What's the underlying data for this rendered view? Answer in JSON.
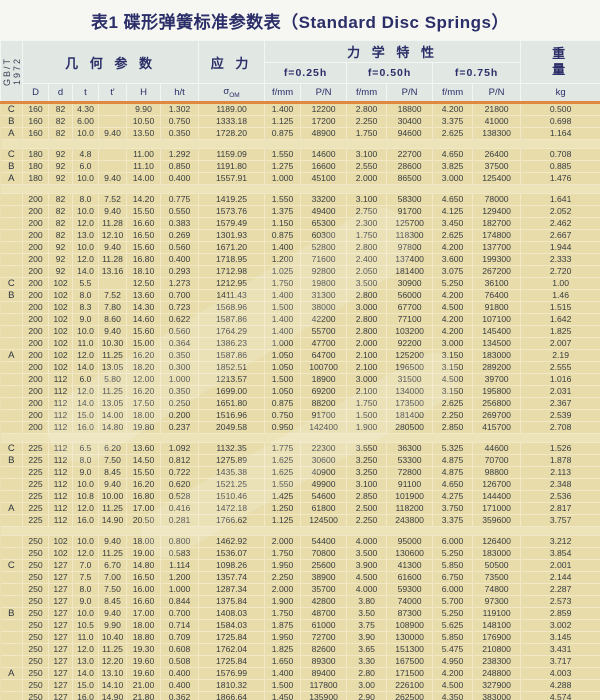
{
  "title": "表1 碟形弹簧标准参数表（Standard Disc Springs）",
  "standard": "GB/T 1972",
  "header": {
    "geometry": "几 何 参 数",
    "stress": "应 力",
    "mechanical": "力 学 特 性",
    "weight_line1": "重",
    "weight_line2": "量",
    "deflections": [
      "f=0.25h",
      "f=0.50h",
      "f=0.75h"
    ],
    "geom_cols": [
      "D",
      "d",
      "t",
      "t′",
      "H",
      "h/t"
    ],
    "sigma": "σ",
    "sigma_sub": "OM",
    "f_label": "f/mm",
    "p_label": "P/N",
    "kg_label": "kg"
  },
  "colors": {
    "body_bg": "#e9dfb2",
    "header_bg": "#e1e7e3",
    "accent_orange": "#e0883e",
    "title_text": "#2b2e68"
  },
  "rows": [
    [
      "C",
      "160",
      "82",
      "4.30",
      "",
      "9.90",
      "1.302",
      "1189.00",
      "1.400",
      "12200",
      "2.800",
      "18800",
      "4.200",
      "21800",
      "0.500"
    ],
    [
      "B",
      "160",
      "82",
      "6.00",
      "",
      "10.50",
      "0.750",
      "1333.18",
      "1.125",
      "17200",
      "2.250",
      "30400",
      "3.375",
      "41000",
      "0.698"
    ],
    [
      "A",
      "160",
      "82",
      "10.0",
      "9.40",
      "13.50",
      "0.350",
      "1728.20",
      "0.875",
      "48900",
      "1.750",
      "94600",
      "2.625",
      "138300",
      "1.164"
    ],
    "gap",
    [
      "C",
      "180",
      "92",
      "4.8",
      "",
      "11.00",
      "1.292",
      "1159.09",
      "1.550",
      "14600",
      "3.100",
      "22700",
      "4.650",
      "26400",
      "0.708"
    ],
    [
      "B",
      "180",
      "92",
      "6.0",
      "",
      "11.10",
      "0.850",
      "1191.80",
      "1.275",
      "16600",
      "2.550",
      "28600",
      "3.825",
      "37500",
      "0.885"
    ],
    [
      "A",
      "180",
      "92",
      "10.0",
      "9.40",
      "14.00",
      "0.400",
      "1557.91",
      "1.000",
      "45100",
      "2.000",
      "86500",
      "3.000",
      "125400",
      "1.476"
    ],
    "gap",
    [
      "",
      "200",
      "82",
      "8.0",
      "7.52",
      "14.20",
      "0.775",
      "1419.25",
      "1.550",
      "33200",
      "3.100",
      "58300",
      "4.650",
      "78000",
      "1.641"
    ],
    [
      "",
      "200",
      "82",
      "10.0",
      "9.40",
      "15.50",
      "0.550",
      "1573.76",
      "1.375",
      "49400",
      "2.750",
      "91700",
      "4.125",
      "129400",
      "2.052"
    ],
    [
      "",
      "200",
      "82",
      "12.0",
      "11.28",
      "16.60",
      "0.383",
      "1579.49",
      "1.150",
      "65300",
      "2.300",
      "125700",
      "3.450",
      "182700",
      "2.462"
    ],
    [
      "",
      "200",
      "82",
      "13.0",
      "12.10",
      "16.50",
      "0.269",
      "1301.93",
      "0.875",
      "60300",
      "1.750",
      "118300",
      "2.625",
      "174800",
      "2.667"
    ],
    [
      "",
      "200",
      "92",
      "10.0",
      "9.40",
      "15.60",
      "0.560",
      "1671.20",
      "1.400",
      "52800",
      "2.800",
      "97800",
      "4.200",
      "137700",
      "1.944"
    ],
    [
      "",
      "200",
      "92",
      "12.0",
      "11.28",
      "16.80",
      "0.400",
      "1718.95",
      "1.200",
      "71600",
      "2.400",
      "137400",
      "3.600",
      "199300",
      "2.333"
    ],
    [
      "",
      "200",
      "92",
      "14.0",
      "13.16",
      "18.10",
      "0.293",
      "1712.98",
      "1.025",
      "92800",
      "2.050",
      "181400",
      "3.075",
      "267200",
      "2.720"
    ],
    [
      "C",
      "200",
      "102",
      "5.5",
      "",
      "12.50",
      "1.273",
      "1212.95",
      "1.750",
      "19800",
      "3.500",
      "30900",
      "5.250",
      "36100",
      "1.00"
    ],
    [
      "B",
      "200",
      "102",
      "8.0",
      "7.52",
      "13.60",
      "0.700",
      "1411.43",
      "1.400",
      "31300",
      "2.800",
      "56000",
      "4.200",
      "76400",
      "1.46"
    ],
    [
      "",
      "200",
      "102",
      "8.3",
      "7.80",
      "14.30",
      "0.723",
      "1568.96",
      "1.500",
      "38000",
      "3.000",
      "67700",
      "4.500",
      "91800",
      "1.515"
    ],
    [
      "",
      "200",
      "102",
      "9.0",
      "8.60",
      "14.60",
      "0.622",
      "1587.86",
      "1.400",
      "42200",
      "2.800",
      "77100",
      "4.200",
      "107100",
      "1.642"
    ],
    [
      "",
      "200",
      "102",
      "10.0",
      "9.40",
      "15.60",
      "0.560",
      "1764.29",
      "1.400",
      "55700",
      "2.800",
      "103200",
      "4.200",
      "145400",
      "1.825"
    ],
    [
      "",
      "200",
      "102",
      "11.0",
      "10.30",
      "15.00",
      "0.364",
      "1386.23",
      "1.000",
      "47700",
      "2.000",
      "92200",
      "3.000",
      "134500",
      "2.007"
    ],
    [
      "A",
      "200",
      "102",
      "12.0",
      "11.25",
      "16.20",
      "0.350",
      "1587.86",
      "1.050",
      "64700",
      "2.100",
      "125200",
      "3.150",
      "183000",
      "2.19"
    ],
    [
      "",
      "200",
      "102",
      "14.0",
      "13.05",
      "18.20",
      "0.300",
      "1852.51",
      "1.050",
      "100700",
      "2.100",
      "196500",
      "3.150",
      "289200",
      "2.555"
    ],
    [
      "",
      "200",
      "112",
      "6.0",
      "5.80",
      "12.00",
      "1.000",
      "1213.57",
      "1.500",
      "18900",
      "3.000",
      "31500",
      "4.500",
      "39700",
      "1.016"
    ],
    [
      "",
      "200",
      "112",
      "12.0",
      "11.25",
      "16.20",
      "0.350",
      "1699.00",
      "1.050",
      "69200",
      "2.100",
      "134000",
      "3.150",
      "195800",
      "2.031"
    ],
    [
      "",
      "200",
      "112",
      "14.0",
      "13.05",
      "17.50",
      "0.250",
      "1651.80",
      "0.875",
      "88200",
      "1.750",
      "173500",
      "2.625",
      "256800",
      "2.367"
    ],
    [
      "",
      "200",
      "112",
      "15.0",
      "14.00",
      "18.00",
      "0.200",
      "1516.96",
      "0.750",
      "91700",
      "1.500",
      "181400",
      "2.250",
      "269700",
      "2.539"
    ],
    [
      "",
      "200",
      "112",
      "16.0",
      "14.80",
      "19.80",
      "0.237",
      "2049.58",
      "0.950",
      "142400",
      "1.900",
      "280500",
      "2.850",
      "415700",
      "2.708"
    ],
    "gap",
    [
      "C",
      "225",
      "112",
      "6.5",
      "6.20",
      "13.60",
      "1.092",
      "1132.35",
      "1.775",
      "22300",
      "3.550",
      "36300",
      "5.325",
      "44600",
      "1.526"
    ],
    [
      "B",
      "225",
      "112",
      "8.0",
      "7.50",
      "14.50",
      "0.812",
      "1275.89",
      "1.625",
      "30600",
      "3.250",
      "53300",
      "4.875",
      "70700",
      "1.878"
    ],
    [
      "",
      "225",
      "112",
      "9.0",
      "8.45",
      "15.50",
      "0.722",
      "1435.38",
      "1.625",
      "40900",
      "3.250",
      "72800",
      "4.875",
      "98800",
      "2.113"
    ],
    [
      "",
      "225",
      "112",
      "10.0",
      "9.40",
      "16.20",
      "0.620",
      "1521.25",
      "1.550",
      "49900",
      "3.100",
      "91100",
      "4.650",
      "126700",
      "2.348"
    ],
    [
      "",
      "225",
      "112",
      "10.8",
      "10.00",
      "16.80",
      "0.528",
      "1510.46",
      "1.425",
      "54600",
      "2.850",
      "101900",
      "4.275",
      "144400",
      "2.536"
    ],
    [
      "A",
      "225",
      "112",
      "12.0",
      "11.25",
      "17.00",
      "0.416",
      "1472.18",
      "1.250",
      "61800",
      "2.500",
      "118200",
      "3.750",
      "171000",
      "2.817"
    ],
    [
      "",
      "225",
      "112",
      "16.0",
      "14.90",
      "20.50",
      "0.281",
      "1766.62",
      "1.125",
      "124500",
      "2.250",
      "243800",
      "3.375",
      "359600",
      "3.757"
    ],
    "gap",
    [
      "",
      "250",
      "102",
      "10.0",
      "9.40",
      "18.00",
      "0.800",
      "1462.92",
      "2.000",
      "54400",
      "4.000",
      "95000",
      "6.000",
      "126400",
      "3.212"
    ],
    [
      "",
      "250",
      "102",
      "12.0",
      "11.25",
      "19.00",
      "0.583",
      "1536.07",
      "1.750",
      "70800",
      "3.500",
      "130600",
      "5.250",
      "183000",
      "3.854"
    ],
    [
      "C",
      "250",
      "127",
      "7.0",
      "6.70",
      "14.80",
      "1.114",
      "1098.26",
      "1.950",
      "25600",
      "3.900",
      "41300",
      "5.850",
      "50500",
      "2.001"
    ],
    [
      "",
      "250",
      "127",
      "7.5",
      "7.00",
      "16.50",
      "1.200",
      "1357.74",
      "2.250",
      "38900",
      "4.500",
      "61600",
      "6.750",
      "73500",
      "2.144"
    ],
    [
      "",
      "250",
      "127",
      "8.0",
      "7.50",
      "16.00",
      "1.000",
      "1287.34",
      "2.000",
      "35700",
      "4.000",
      "59300",
      "6.000",
      "74800",
      "2.287"
    ],
    [
      "",
      "250",
      "127",
      "9.0",
      "8.45",
      "16.60",
      "0.844",
      "1375.84",
      "1.900",
      "42800",
      "3.80",
      "74000",
      "5.700",
      "97300",
      "2.573"
    ],
    [
      "B",
      "250",
      "127",
      "10.0",
      "9.40",
      "17.00",
      "0.700",
      "1408.03",
      "1.750",
      "48700",
      "3.50",
      "87300",
      "5.250",
      "119100",
      "2.859"
    ],
    [
      "",
      "250",
      "127",
      "10.5",
      "9.90",
      "18.00",
      "0.714",
      "1584.03",
      "1.875",
      "61000",
      "3.75",
      "108900",
      "5.625",
      "148100",
      "3.002"
    ],
    [
      "",
      "250",
      "127",
      "11.0",
      "10.40",
      "18.80",
      "0.709",
      "1725.84",
      "1.950",
      "72700",
      "3.90",
      "130000",
      "5.850",
      "176900",
      "3.145"
    ],
    [
      "",
      "250",
      "127",
      "12.0",
      "11.25",
      "19.30",
      "0.608",
      "1762.04",
      "1.825",
      "82600",
      "3.65",
      "151300",
      "5.475",
      "210800",
      "3.431"
    ],
    [
      "",
      "250",
      "127",
      "13.0",
      "12.20",
      "19.60",
      "0.508",
      "1725.84",
      "1.650",
      "89300",
      "3.30",
      "167500",
      "4.950",
      "238300",
      "3.717"
    ],
    [
      "A",
      "250",
      "127",
      "14.0",
      "13.10",
      "19.60",
      "0.400",
      "1576.99",
      "1.400",
      "89400",
      "2.80",
      "171500",
      "4.200",
      "248800",
      "4.003"
    ],
    [
      "",
      "250",
      "127",
      "15.0",
      "14.10",
      "21.00",
      "0.400",
      "1810.32",
      "1.500",
      "117800",
      "3.00",
      "226100",
      "4.500",
      "327900",
      "4.288"
    ],
    [
      "",
      "250",
      "127",
      "16.0",
      "14.90",
      "21.80",
      "0.362",
      "1866.64",
      "1.450",
      "135900",
      "2.90",
      "262500",
      "4.350",
      "383000",
      "4.574"
    ],
    [
      "",
      "250",
      "127",
      "17.5",
      "16.35",
      "22.00",
      "0.257",
      "1584.03",
      "1.125",
      "132500",
      "2.25",
      "260300",
      "3.375",
      "384900",
      "5.003"
    ],
    [
      "",
      "250",
      "127",
      "18.5",
      "17.30",
      "23.00",
      "0.243",
      "1674.55",
      "1.125",
      "155900",
      "2.25",
      "306700",
      "3.375",
      "454300",
      "5.289"
    ]
  ]
}
